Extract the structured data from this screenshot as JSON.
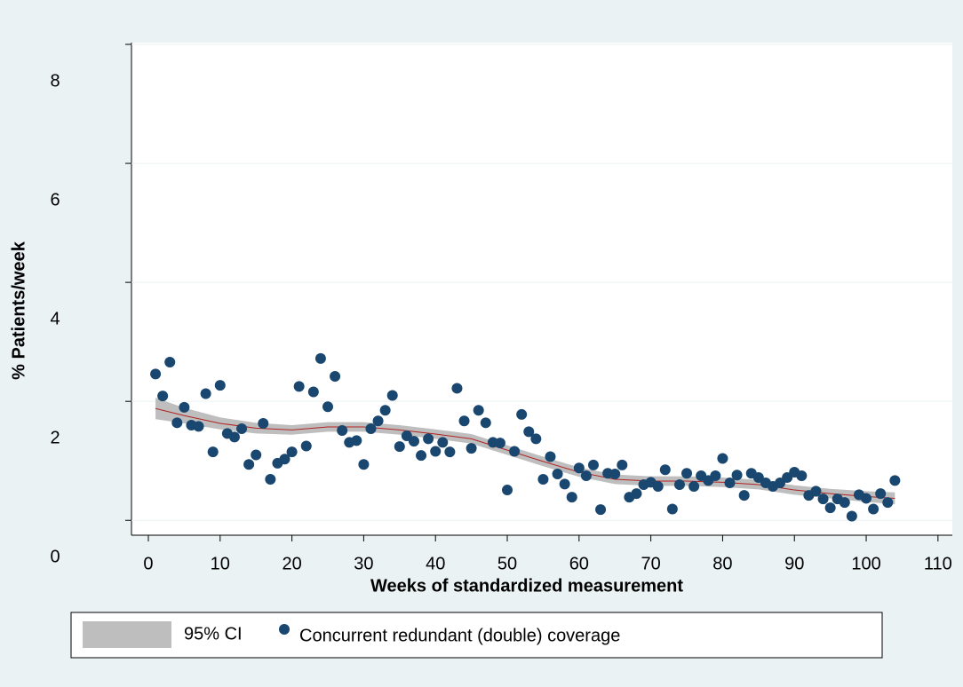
{
  "chart_data": {
    "type": "scatter",
    "x_label": "Weeks of standardized measurement",
    "y_label": "% Patients/week",
    "xlim": [
      -2.35,
      112
    ],
    "ylim": [
      -0.25,
      8.03
    ],
    "xticks": [
      0,
      10,
      20,
      30,
      40,
      50,
      60,
      70,
      80,
      90,
      100,
      110
    ],
    "yticks": [
      0,
      2,
      4,
      6,
      8
    ],
    "grid": true,
    "series": [
      {
        "name": "Concurrent redundant (double) coverage",
        "color": "#1a476f",
        "x": [
          1,
          2,
          3,
          4,
          5,
          6,
          7,
          8,
          9,
          10,
          11,
          12,
          13,
          14,
          15,
          16,
          17,
          18,
          19,
          20,
          21,
          22,
          23,
          24,
          25,
          26,
          27,
          28,
          29,
          30,
          31,
          32,
          33,
          34,
          35,
          36,
          37,
          38,
          39,
          40,
          41,
          42,
          43,
          44,
          45,
          46,
          47,
          48,
          49,
          50,
          51,
          52,
          53,
          54,
          55,
          56,
          57,
          58,
          59,
          60,
          61,
          62,
          63,
          64,
          65,
          66,
          67,
          68,
          69,
          70,
          71,
          72,
          73,
          74,
          75,
          76,
          77,
          78,
          79,
          80,
          81,
          82,
          83,
          84,
          85,
          86,
          87,
          88,
          89,
          90,
          91,
          92,
          93,
          94,
          95,
          96,
          97,
          98,
          99,
          100,
          101,
          102,
          103,
          104
        ],
        "values": [
          2.46,
          2.09,
          2.66,
          1.64,
          1.9,
          1.6,
          1.58,
          2.13,
          1.15,
          2.27,
          1.46,
          1.4,
          1.54,
          0.94,
          1.1,
          1.63,
          0.69,
          0.96,
          1.03,
          1.15,
          2.25,
          1.25,
          2.16,
          2.72,
          1.91,
          2.42,
          1.51,
          1.31,
          1.34,
          0.94,
          1.54,
          1.67,
          1.85,
          2.1,
          1.24,
          1.42,
          1.33,
          1.09,
          1.37,
          1.16,
          1.31,
          1.15,
          2.22,
          1.67,
          1.21,
          1.85,
          1.64,
          1.31,
          1.3,
          0.51,
          1.16,
          1.78,
          1.49,
          1.37,
          0.69,
          1.07,
          0.78,
          0.61,
          0.39,
          0.88,
          0.75,
          0.93,
          0.18,
          0.79,
          0.78,
          0.93,
          0.39,
          0.45,
          0.6,
          0.64,
          0.57,
          0.85,
          0.19,
          0.6,
          0.79,
          0.57,
          0.75,
          0.67,
          0.75,
          1.04,
          0.63,
          0.76,
          0.42,
          0.79,
          0.72,
          0.63,
          0.57,
          0.63,
          0.72,
          0.81,
          0.75,
          0.42,
          0.49,
          0.36,
          0.21,
          0.36,
          0.3,
          0.07,
          0.43,
          0.37,
          0.19,
          0.45,
          0.3,
          0.67
        ]
      }
    ],
    "ci_band": {
      "name": "95% CI",
      "color": "#bebebe",
      "x": [
        1,
        5,
        10,
        15,
        20,
        25,
        30,
        35,
        40,
        45,
        50,
        55,
        60,
        65,
        70,
        75,
        80,
        85,
        90,
        95,
        100,
        104
      ],
      "lower": [
        1.7,
        1.63,
        1.53,
        1.46,
        1.44,
        1.49,
        1.49,
        1.44,
        1.37,
        1.29,
        1.1,
        0.91,
        0.73,
        0.61,
        0.58,
        0.58,
        0.56,
        0.52,
        0.43,
        0.37,
        0.31,
        0.27
      ],
      "upper": [
        2.06,
        1.89,
        1.73,
        1.64,
        1.6,
        1.65,
        1.65,
        1.6,
        1.53,
        1.45,
        1.26,
        1.07,
        0.89,
        0.77,
        0.74,
        0.74,
        0.72,
        0.68,
        0.59,
        0.53,
        0.49,
        0.47
      ]
    },
    "fit_line": {
      "color": "#b22222",
      "x": [
        1,
        5,
        10,
        15,
        20,
        25,
        30,
        35,
        40,
        45,
        50,
        55,
        60,
        65,
        70,
        75,
        80,
        85,
        90,
        95,
        100,
        104
      ],
      "values": [
        1.88,
        1.76,
        1.63,
        1.55,
        1.52,
        1.57,
        1.57,
        1.52,
        1.45,
        1.37,
        1.18,
        0.99,
        0.81,
        0.69,
        0.66,
        0.66,
        0.64,
        0.6,
        0.51,
        0.45,
        0.4,
        0.37
      ]
    }
  }
}
